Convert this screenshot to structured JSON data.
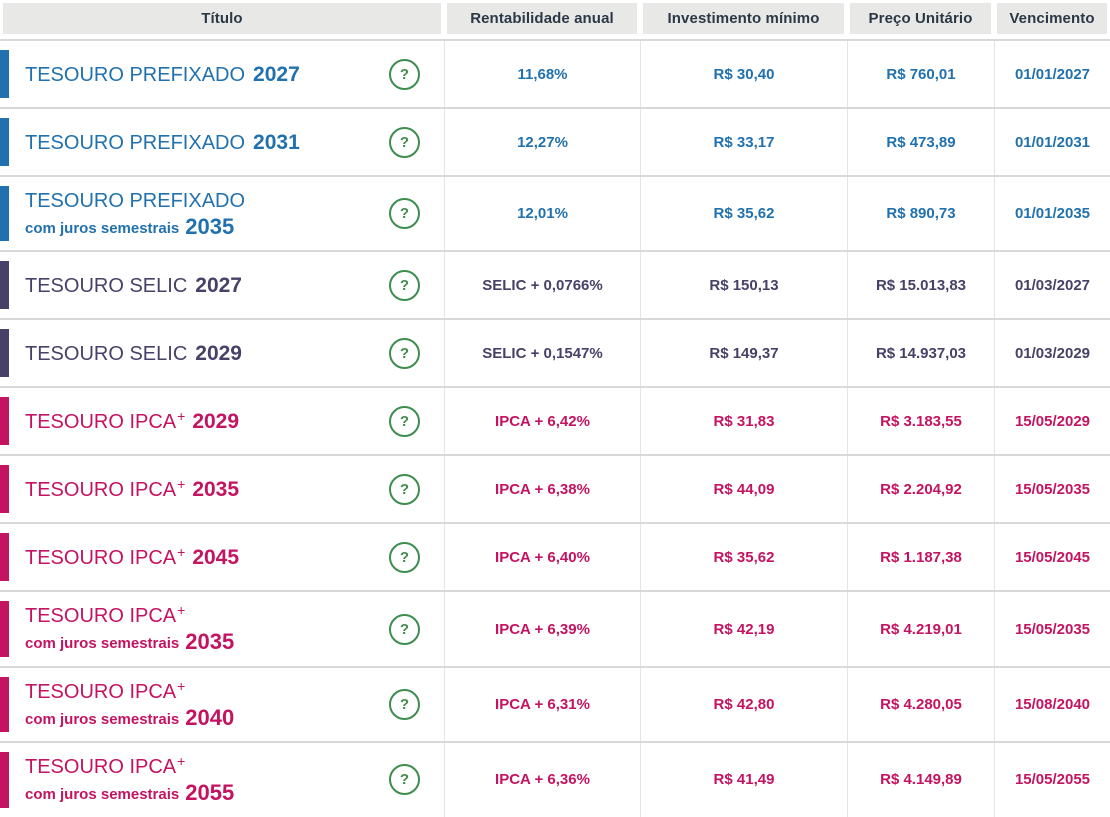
{
  "table": {
    "columns": [
      "Título",
      "Rentabilidade anual",
      "Investimento mínimo",
      "Preço Unitário",
      "Vencimento"
    ],
    "help_icon": "?",
    "colors": {
      "prefixado": "#2171ae",
      "selic": "#474168",
      "ipca": "#c41360",
      "header_text": "#2b3947",
      "header_bg": "#e8e8e7",
      "row_border": "#d8d8d8",
      "help_green": "#3e8d4e"
    },
    "rows": [
      {
        "group": "prefixado",
        "title_main": "TESOURO PREFIXADO",
        "title_sup": "",
        "title_sub": "",
        "year": "2027",
        "rate": "11,68%",
        "min": "R$ 30,40",
        "price": "R$ 760,01",
        "maturity": "01/01/2027"
      },
      {
        "group": "prefixado",
        "title_main": "TESOURO PREFIXADO",
        "title_sup": "",
        "title_sub": "",
        "year": "2031",
        "rate": "12,27%",
        "min": "R$ 33,17",
        "price": "R$ 473,89",
        "maturity": "01/01/2031"
      },
      {
        "group": "prefixado",
        "title_main": "TESOURO PREFIXADO",
        "title_sup": "",
        "title_sub": "com juros semestrais",
        "year": "2035",
        "rate": "12,01%",
        "min": "R$ 35,62",
        "price": "R$ 890,73",
        "maturity": "01/01/2035"
      },
      {
        "group": "selic",
        "title_main": "TESOURO SELIC",
        "title_sup": "",
        "title_sub": "",
        "year": "2027",
        "rate": "SELIC + 0,0766%",
        "min": "R$ 150,13",
        "price": "R$ 15.013,83",
        "maturity": "01/03/2027"
      },
      {
        "group": "selic",
        "title_main": "TESOURO SELIC",
        "title_sup": "",
        "title_sub": "",
        "year": "2029",
        "rate": "SELIC + 0,1547%",
        "min": "R$ 149,37",
        "price": "R$ 14.937,03",
        "maturity": "01/03/2029"
      },
      {
        "group": "ipca",
        "title_main": "TESOURO IPCA",
        "title_sup": "+",
        "title_sub": "",
        "year": "2029",
        "rate": "IPCA + 6,42%",
        "min": "R$ 31,83",
        "price": "R$ 3.183,55",
        "maturity": "15/05/2029"
      },
      {
        "group": "ipca",
        "title_main": "TESOURO IPCA",
        "title_sup": "+",
        "title_sub": "",
        "year": "2035",
        "rate": "IPCA + 6,38%",
        "min": "R$ 44,09",
        "price": "R$ 2.204,92",
        "maturity": "15/05/2035"
      },
      {
        "group": "ipca",
        "title_main": "TESOURO IPCA",
        "title_sup": "+",
        "title_sub": "",
        "year": "2045",
        "rate": "IPCA + 6,40%",
        "min": "R$ 35,62",
        "price": "R$ 1.187,38",
        "maturity": "15/05/2045"
      },
      {
        "group": "ipca",
        "title_main": "TESOURO IPCA",
        "title_sup": "+",
        "title_sub": "com juros semestrais",
        "year": "2035",
        "rate": "IPCA + 6,39%",
        "min": "R$ 42,19",
        "price": "R$ 4.219,01",
        "maturity": "15/05/2035"
      },
      {
        "group": "ipca",
        "title_main": "TESOURO IPCA",
        "title_sup": "+",
        "title_sub": "com juros semestrais",
        "year": "2040",
        "rate": "IPCA + 6,31%",
        "min": "R$ 42,80",
        "price": "R$ 4.280,05",
        "maturity": "15/08/2040"
      },
      {
        "group": "ipca",
        "title_main": "TESOURO IPCA",
        "title_sup": "+",
        "title_sub": "com juros semestrais",
        "year": "2055",
        "rate": "IPCA + 6,36%",
        "min": "R$ 41,49",
        "price": "R$ 4.149,89",
        "maturity": "15/05/2055"
      }
    ]
  }
}
